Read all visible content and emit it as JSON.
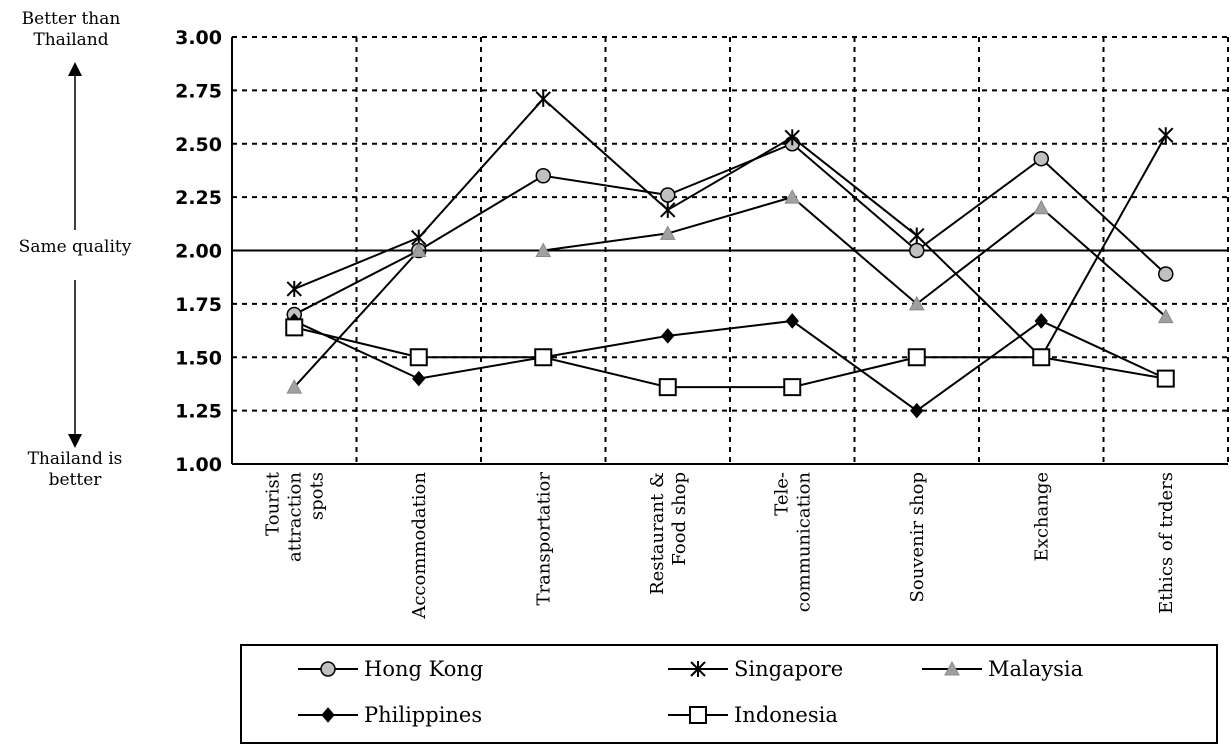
{
  "annotations": {
    "top": "Better than\nThailand",
    "middle": "Same quality",
    "bottom": "Thailand is\nbetter"
  },
  "chart_data": {
    "type": "line",
    "categories": [
      "Tourist\nattraction\nspots",
      "Accommodation",
      "Transportatior",
      "Restaurant &\nFood shop",
      "Tele-\ncommunication",
      "Souvenir shop",
      "Exchange",
      "Ethics of trders"
    ],
    "ylim": [
      1.0,
      3.0
    ],
    "yticks": [
      "1.00",
      "1.25",
      "1.50",
      "1.75",
      "2.00",
      "2.25",
      "2.50",
      "2.75",
      "3.00"
    ],
    "grid": true,
    "legend_position": "bottom",
    "series": [
      {
        "name": "Hong Kong",
        "marker": "circle",
        "color": "#000000",
        "fill": "#c0c0c0",
        "values": [
          1.7,
          2.0,
          2.35,
          2.26,
          2.5,
          2.0,
          2.43,
          1.89
        ]
      },
      {
        "name": "Singapore",
        "marker": "star",
        "color": "#000000",
        "fill": "#000000",
        "values": [
          1.82,
          2.06,
          2.71,
          2.19,
          2.53,
          2.07,
          1.5,
          2.54
        ]
      },
      {
        "name": "Malaysia",
        "marker": "triangle",
        "color": "#000000",
        "fill": "#a0a0a0",
        "values": [
          1.36,
          2.0,
          2.0,
          2.08,
          2.25,
          1.75,
          2.2,
          1.69
        ]
      },
      {
        "name": "Philippines",
        "marker": "diamond",
        "color": "#000000",
        "fill": "#000000",
        "values": [
          1.67,
          1.4,
          1.5,
          1.6,
          1.67,
          1.25,
          1.67,
          1.4
        ]
      },
      {
        "name": "Indonesia",
        "marker": "square",
        "color": "#000000",
        "fill": "#ffffff",
        "values": [
          1.64,
          1.5,
          1.5,
          1.36,
          1.36,
          1.5,
          1.5,
          1.4
        ]
      }
    ]
  }
}
